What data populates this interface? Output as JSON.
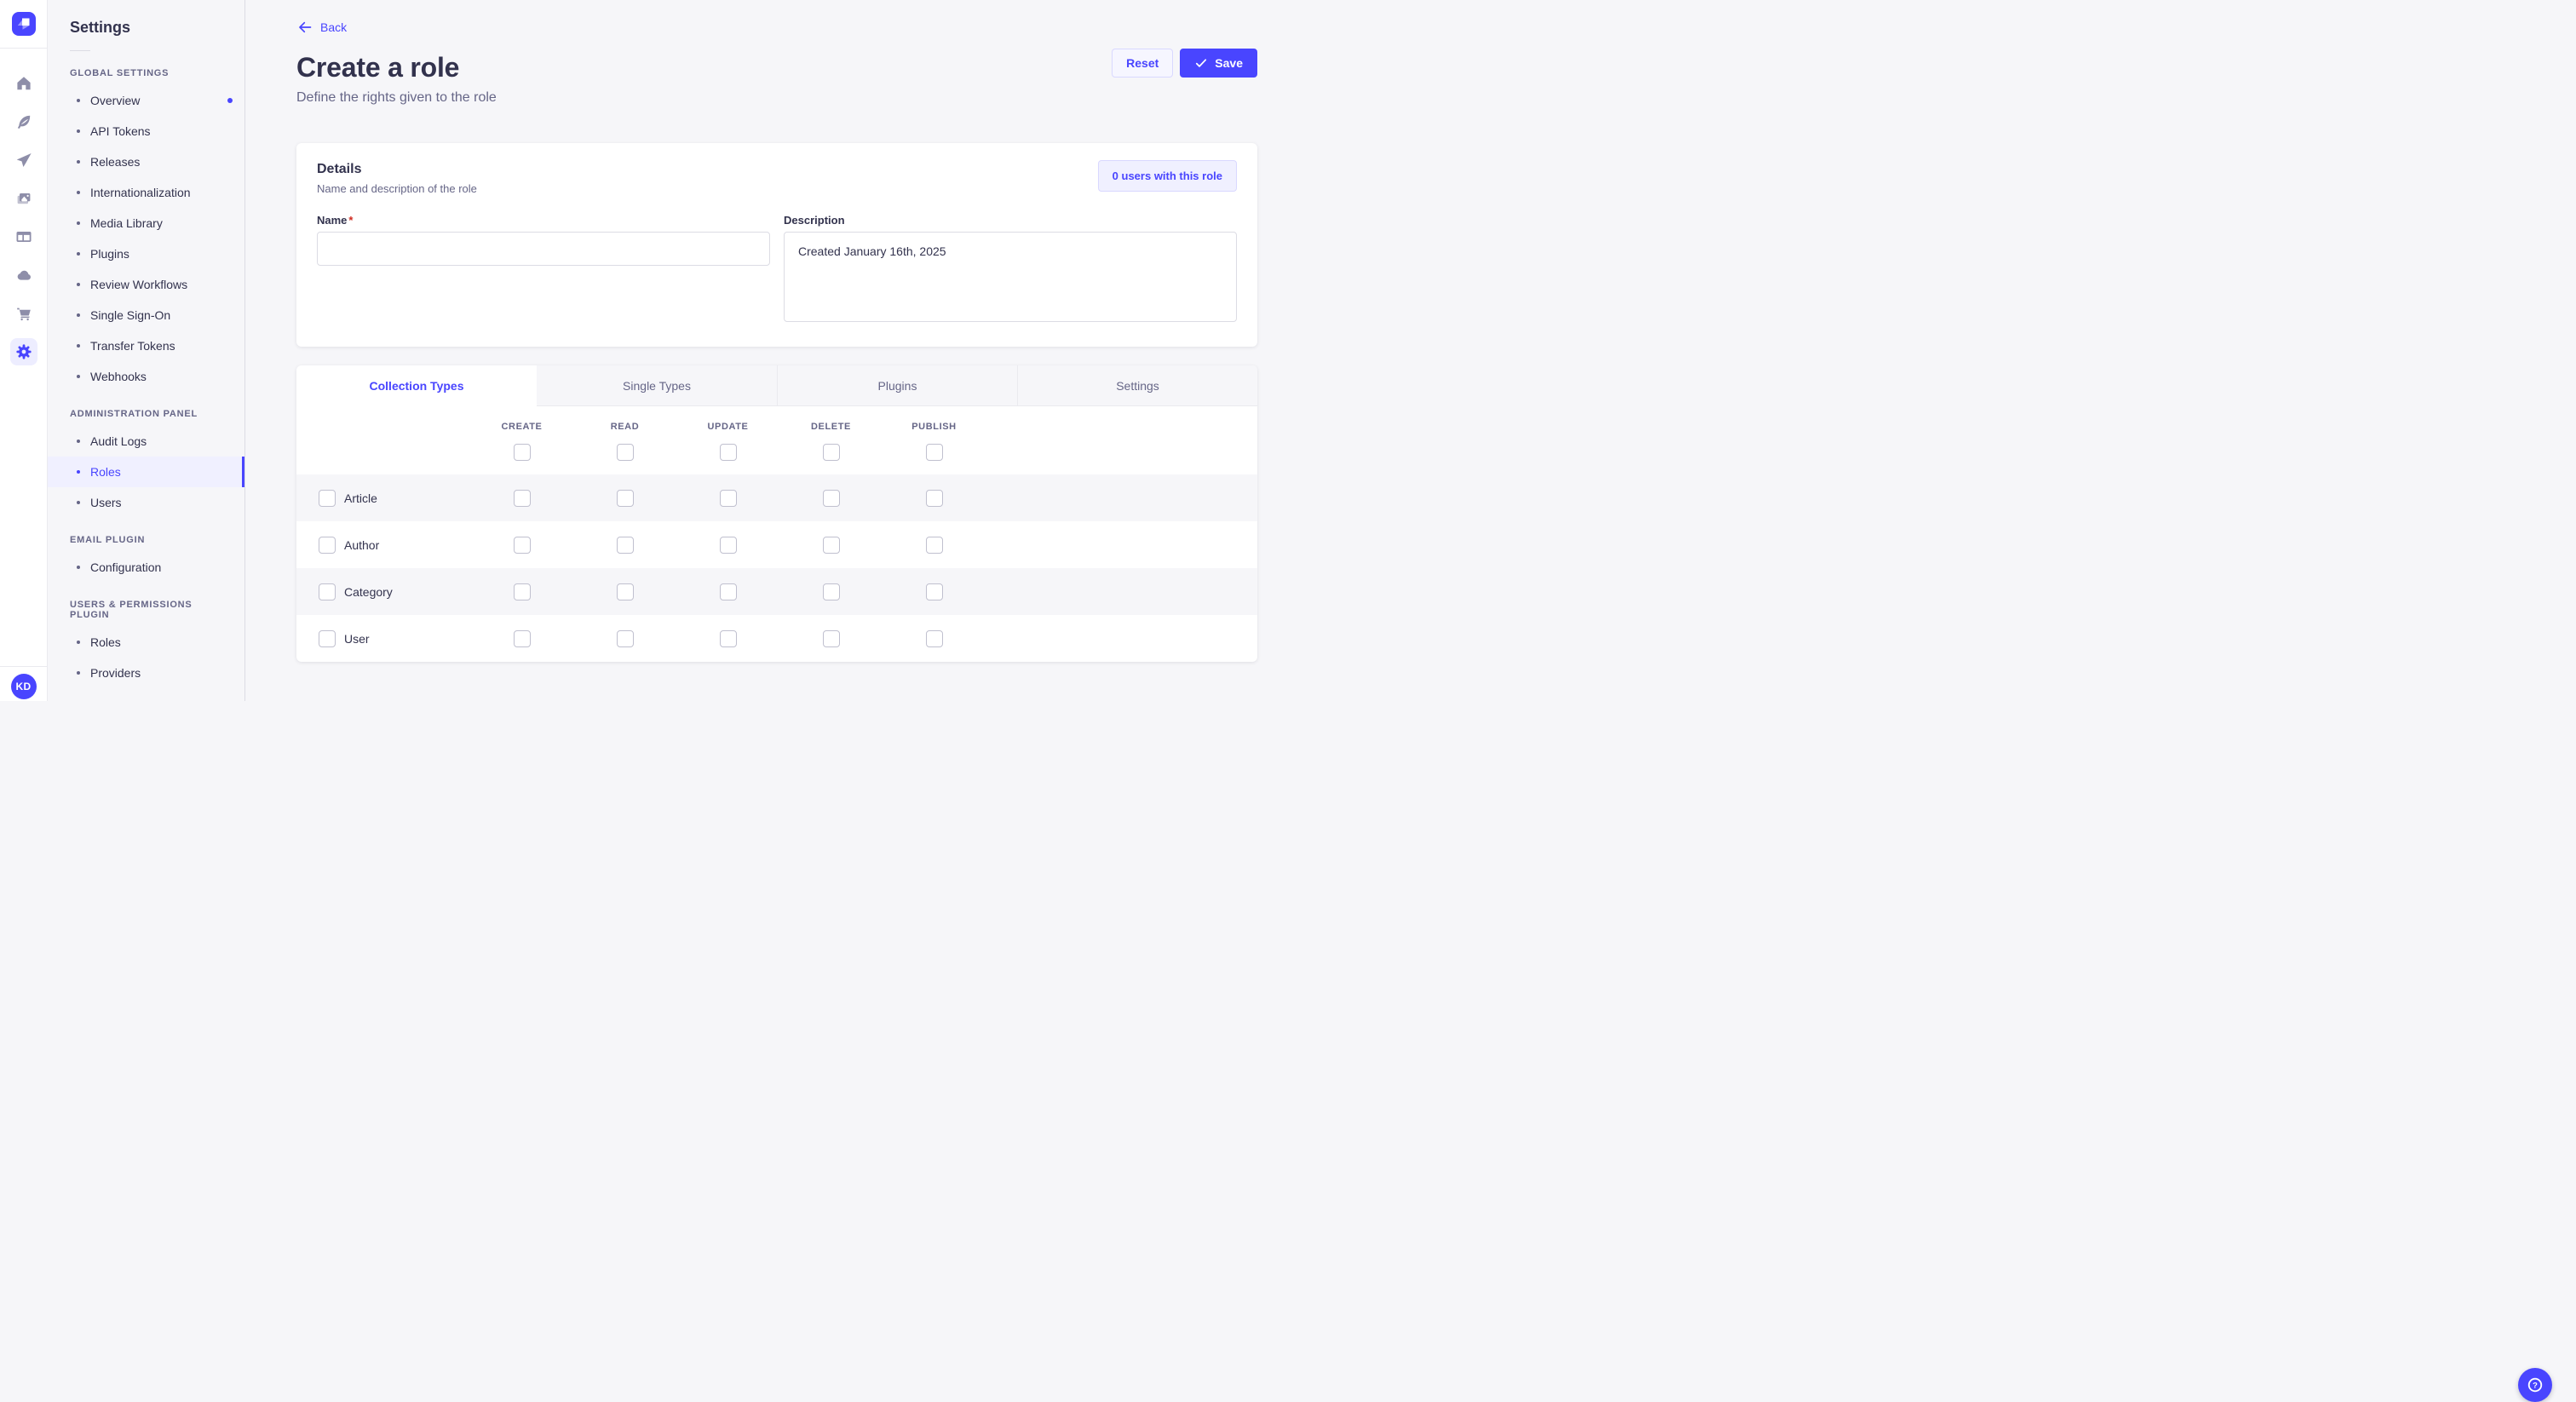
{
  "nav_rail": {
    "logo_icon": "strapi-logo",
    "items": [
      {
        "icon": "home"
      },
      {
        "icon": "feather"
      },
      {
        "icon": "paper-plane"
      },
      {
        "icon": "pictures"
      },
      {
        "icon": "layout"
      },
      {
        "icon": "cloud"
      },
      {
        "icon": "cart"
      },
      {
        "icon": "gear",
        "active": true
      }
    ],
    "avatar_initials": "KD"
  },
  "sidebar": {
    "title": "Settings",
    "sections": [
      {
        "label": "GLOBAL SETTINGS",
        "items": [
          {
            "label": "Overview",
            "notification": true
          },
          {
            "label": "API Tokens"
          },
          {
            "label": "Releases"
          },
          {
            "label": "Internationalization"
          },
          {
            "label": "Media Library"
          },
          {
            "label": "Plugins"
          },
          {
            "label": "Review Workflows"
          },
          {
            "label": "Single Sign-On"
          },
          {
            "label": "Transfer Tokens"
          },
          {
            "label": "Webhooks"
          }
        ]
      },
      {
        "label": "ADMINISTRATION PANEL",
        "items": [
          {
            "label": "Audit Logs"
          },
          {
            "label": "Roles",
            "active": true
          },
          {
            "label": "Users"
          }
        ]
      },
      {
        "label": "EMAIL PLUGIN",
        "items": [
          {
            "label": "Configuration"
          }
        ]
      },
      {
        "label": "USERS & PERMISSIONS PLUGIN",
        "items": [
          {
            "label": "Roles"
          },
          {
            "label": "Providers"
          }
        ]
      }
    ]
  },
  "header": {
    "back_label": "Back",
    "title": "Create a role",
    "subtitle": "Define the rights given to the role",
    "reset_label": "Reset",
    "save_label": "Save"
  },
  "details_card": {
    "title": "Details",
    "subtitle": "Name and description of the role",
    "users_count_label": "0 users with this role",
    "name_label": "Name",
    "name_required_mark": "*",
    "name_value": "",
    "description_label": "Description",
    "description_value": "Created January 16th, 2025"
  },
  "permissions_panel": {
    "tabs": [
      {
        "label": "Collection Types",
        "active": true
      },
      {
        "label": "Single Types"
      },
      {
        "label": "Plugins"
      },
      {
        "label": "Settings"
      }
    ],
    "columns": [
      "CREATE",
      "READ",
      "UPDATE",
      "DELETE",
      "PUBLISH"
    ],
    "rows": [
      {
        "label": "Article"
      },
      {
        "label": "Author"
      },
      {
        "label": "Category"
      },
      {
        "label": "User"
      }
    ],
    "checkboxes_checked": false
  },
  "fab": {
    "icon": "question-mark"
  },
  "colors": {
    "primary": "#4945ff",
    "primary_bg": "#f0f0ff",
    "primary_border": "#d9d8ff",
    "text": "#32324d",
    "text_muted": "#666687",
    "icon_muted": "#8e8ea9",
    "page_bg": "#f6f6f9",
    "card_bg": "#ffffff",
    "border": "#dcdce4",
    "border_light": "#eaeaef",
    "checkbox_border": "#c0c0cf",
    "required": "#d02b20"
  }
}
